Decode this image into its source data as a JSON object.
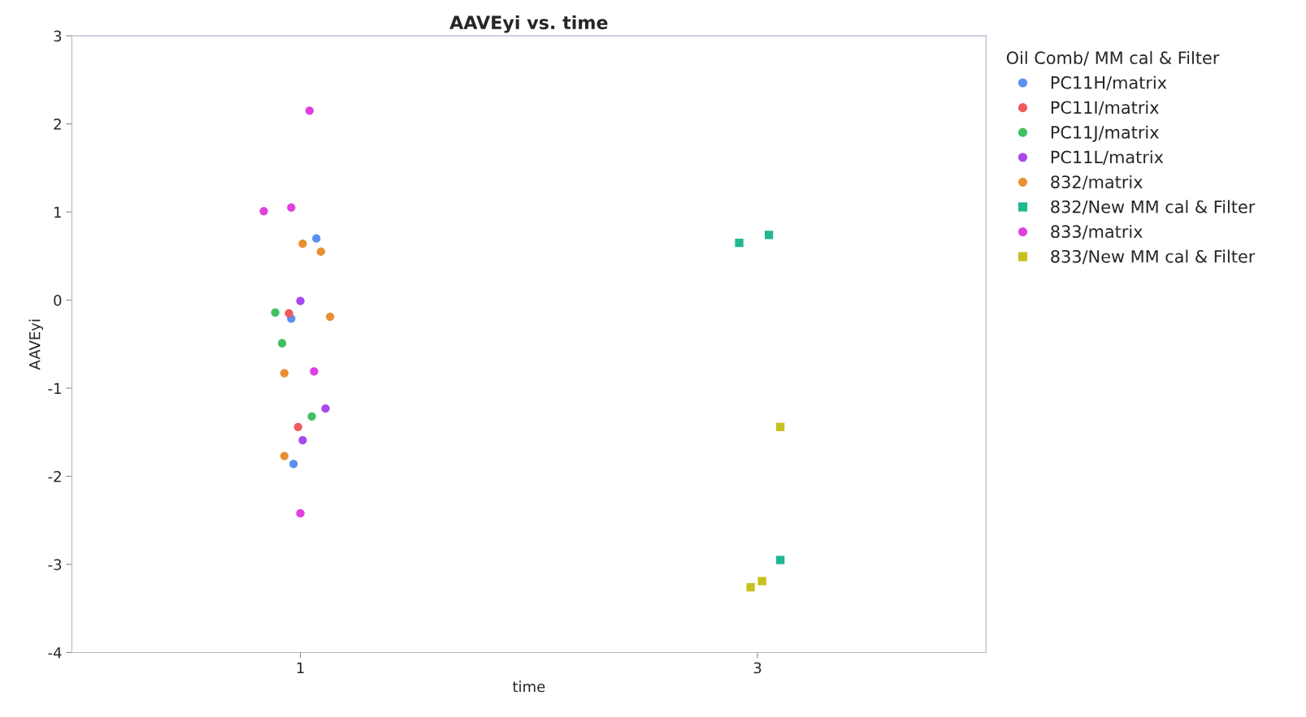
{
  "chart_data": {
    "type": "scatter",
    "title": "AAVEyi vs. time",
    "xlabel": "time",
    "ylabel": "AAVEyi",
    "legend_title": "Oil Comb/ MM cal & Filter",
    "legend": "right",
    "grid": false,
    "xlim": [
      0,
      4
    ],
    "xticks": [
      1,
      3
    ],
    "ylim": [
      -4,
      3
    ],
    "yticks": [
      -4,
      -3,
      -2,
      -1,
      0,
      1,
      2,
      3
    ],
    "series": [
      {
        "name": "PC11H/matrix",
        "color": "#5b8ff0",
        "marker": "circle",
        "x": [
          1.07,
          0.96,
          0.97
        ],
        "values": [
          0.7,
          -0.21,
          -1.86
        ]
      },
      {
        "name": "PC11I/matrix",
        "color": "#f05a5a",
        "marker": "circle",
        "x": [
          0.95,
          0.99
        ],
        "values": [
          -0.15,
          -1.44
        ]
      },
      {
        "name": "PC11J/matrix",
        "color": "#40c060",
        "marker": "circle",
        "x": [
          0.89,
          0.92,
          1.05
        ],
        "values": [
          -0.14,
          -0.49,
          -1.32
        ]
      },
      {
        "name": "PC11L/matrix",
        "color": "#a848f0",
        "marker": "circle",
        "x": [
          1.0,
          1.11,
          1.01
        ],
        "values": [
          -0.01,
          -1.23,
          -1.59
        ]
      },
      {
        "name": "832/matrix",
        "color": "#e89030",
        "marker": "circle",
        "x": [
          1.01,
          1.09,
          1.13,
          0.93,
          0.93
        ],
        "values": [
          0.64,
          0.55,
          -0.19,
          -0.83,
          -1.77
        ]
      },
      {
        "name": "832/New MM cal & Filter",
        "color": "#20b890",
        "marker": "square",
        "x": [
          2.92,
          3.05,
          3.1
        ],
        "values": [
          0.65,
          0.74,
          -2.95
        ]
      },
      {
        "name": "833/matrix",
        "color": "#e040e0",
        "marker": "circle",
        "x": [
          1.04,
          0.84,
          0.96,
          1.06,
          1.0
        ],
        "values": [
          2.15,
          1.01,
          1.05,
          -0.81,
          -2.42
        ]
      },
      {
        "name": "833/New MM cal & Filter",
        "color": "#c8c020",
        "marker": "square",
        "x": [
          3.1,
          3.02,
          2.97
        ],
        "values": [
          -1.44,
          -3.19,
          -3.26
        ]
      }
    ]
  }
}
